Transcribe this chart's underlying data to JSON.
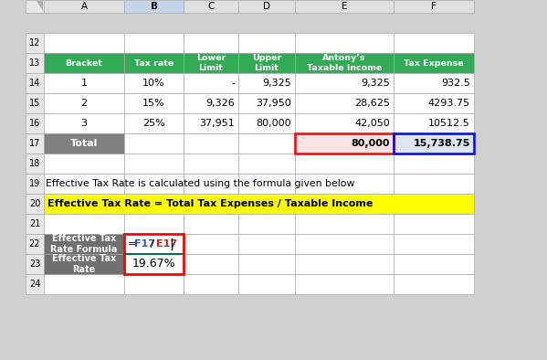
{
  "col_headers": [
    "A",
    "B",
    "C",
    "D",
    "E",
    "F"
  ],
  "row_numbers": [
    "12",
    "13",
    "14",
    "15",
    "16",
    "17",
    "18",
    "19",
    "20",
    "21",
    "22",
    "23",
    "24"
  ],
  "table_headers": [
    "Bracket",
    "Tax rate",
    "Lower\nLimit",
    "Upper\nLimit",
    "Antony’s\nTaxable Income",
    "Tax Expense"
  ],
  "data_rows": [
    [
      "1",
      "10%",
      "-",
      "9,325",
      "9,325",
      "932.5"
    ],
    [
      "2",
      "15%",
      "9,326",
      "37,950",
      "28,625",
      "4293.75"
    ],
    [
      "3",
      "25%",
      "37,951",
      "80,000",
      "42,050",
      "10512.5"
    ]
  ],
  "total_row": [
    "Total",
    "",
    "",
    "",
    "80,000",
    "15,738.75"
  ],
  "header_bg": "#33aa55",
  "header_fg": "#ffffff",
  "total_bg": "#808080",
  "total_fg": "#ffffff",
  "note_text": "Effective Tax Rate is calculated using the formula given below",
  "formula_text": "Effective Tax Rate = Total Tax Expenses / Taxable Income",
  "formula_bg": "#ffff00",
  "box_label_bg": "#707070",
  "box_label_fg": "#ffffff",
  "box_value_bg": "#ffffff",
  "pink_fill": "#fce4e4",
  "blue_fill": "#dce6f1",
  "red_color": "#ff0000",
  "blue_color": "#0000ff",
  "dark_red": "#cc0000",
  "grid_color": "#aaaaaa",
  "col_header_bg": "#e0e0e0",
  "col_B_bg": "#c5d5ee",
  "row_num_bg": "#e8e8e8",
  "body_bg": "#ffffff",
  "fig_bg": "#d0d0d0"
}
